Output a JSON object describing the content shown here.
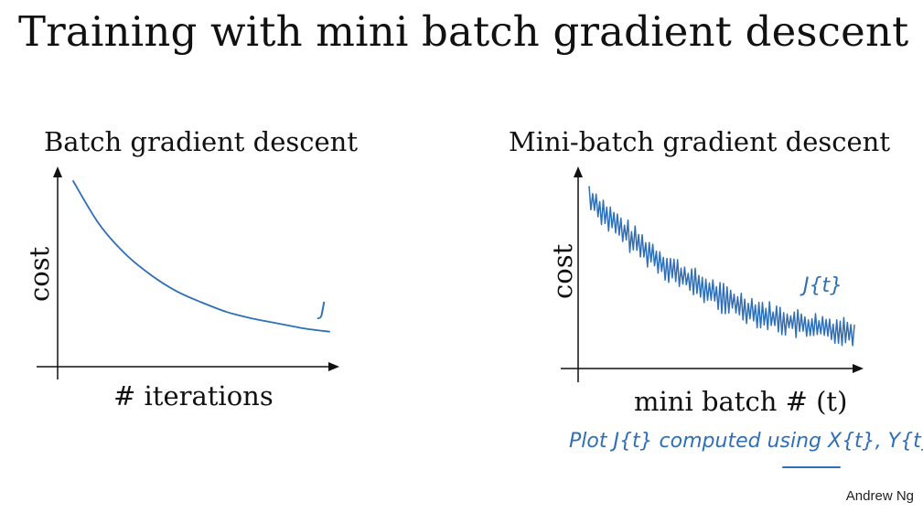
{
  "slide": {
    "title": "Training with mini batch gradient descent",
    "author": "Andrew Ng"
  },
  "colors": {
    "curve": "#2e6fb8",
    "axes": "#111111",
    "text": "#111111"
  },
  "chart_data": [
    {
      "type": "line",
      "title": "Batch gradient descent",
      "xlabel": "# iterations",
      "ylabel": "cost",
      "series": [
        {
          "name": "J",
          "shape": "smooth-decreasing",
          "x": [
            0,
            1,
            2,
            3,
            4,
            5,
            6,
            7,
            8,
            9,
            10
          ],
          "values": [
            1.0,
            0.74,
            0.56,
            0.43,
            0.33,
            0.26,
            0.2,
            0.16,
            0.13,
            0.1,
            0.08
          ]
        }
      ],
      "grid": false,
      "legend": "none"
    },
    {
      "type": "line",
      "title": "Mini-batch gradient descent",
      "xlabel": "mini batch # (t)",
      "ylabel": "cost",
      "series": [
        {
          "name": "J{t}",
          "shape": "noisy-decreasing",
          "x": [
            0,
            1,
            2,
            3,
            4,
            5,
            6,
            7,
            8,
            9,
            10
          ],
          "values": [
            1.0,
            0.82,
            0.68,
            0.55,
            0.45,
            0.36,
            0.29,
            0.23,
            0.19,
            0.16,
            0.15
          ],
          "noise_amplitude": 0.1
        }
      ],
      "annotation": "Plot J{t} computed using X{t}, Y{t}",
      "grid": false,
      "legend": "none"
    }
  ]
}
